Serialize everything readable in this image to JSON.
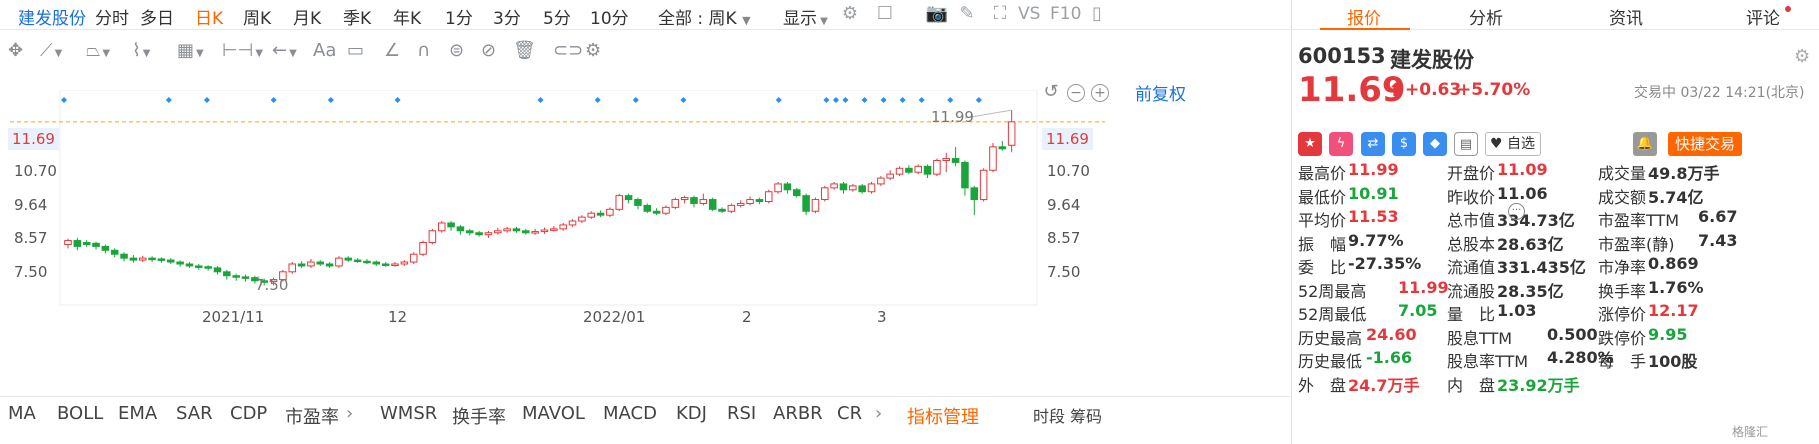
{
  "topbar": {
    "stock_name": "建发股份",
    "periods": [
      "分时",
      "多日",
      "日K",
      "周K",
      "月K",
      "季K",
      "年K",
      "1分",
      "3分",
      "5分",
      "10分"
    ],
    "active_period": "日K",
    "all_select": "全部 : 周K",
    "display_label": "显示",
    "vs_label": "VS",
    "f10_label": "F10"
  },
  "toolbar": {
    "text_tool": "Aa"
  },
  "chart": {
    "fq_label": "前复权",
    "y_ticks": [
      "11.69",
      "10.70",
      "9.64",
      "8.57",
      "7.50"
    ],
    "y_ticks_right": [
      "11.69",
      "10.70",
      "9.64",
      "8.57",
      "7.50"
    ],
    "x_ticks": [
      "2021/11",
      "12",
      "2022/01",
      "2",
      "3"
    ],
    "annot_high": "11.99",
    "annot_low": "7.50",
    "current_line_label_left": "11.69",
    "current_line_label_right": "11.69"
  },
  "chart_data": {
    "type": "candlestick",
    "series_name": "",
    "y_range": [
      7.0,
      12.3
    ],
    "current_price": 11.69,
    "high_marker": 11.99,
    "low_marker": 7.5,
    "candles": [
      [
        8.55,
        8.65,
        8.45,
        8.7,
        "up"
      ],
      [
        8.65,
        8.5,
        8.4,
        8.72,
        "down"
      ],
      [
        8.55,
        8.6,
        8.48,
        8.66,
        "down"
      ],
      [
        8.58,
        8.5,
        8.42,
        8.62,
        "down"
      ],
      [
        8.5,
        8.4,
        8.32,
        8.55,
        "down"
      ],
      [
        8.4,
        8.3,
        8.22,
        8.45,
        "down"
      ],
      [
        8.3,
        8.2,
        8.12,
        8.35,
        "down"
      ],
      [
        8.2,
        8.15,
        8.08,
        8.28,
        "down"
      ],
      [
        8.15,
        8.2,
        8.1,
        8.26,
        "up"
      ],
      [
        8.2,
        8.18,
        8.1,
        8.25,
        "down"
      ],
      [
        8.18,
        8.15,
        8.08,
        8.22,
        "down"
      ],
      [
        8.15,
        8.1,
        8.05,
        8.2,
        "down"
      ],
      [
        8.1,
        8.05,
        7.98,
        8.14,
        "down"
      ],
      [
        8.05,
        8.0,
        7.95,
        8.1,
        "down"
      ],
      [
        8.0,
        7.98,
        7.9,
        8.05,
        "down"
      ],
      [
        7.98,
        7.95,
        7.88,
        8.02,
        "down"
      ],
      [
        7.95,
        7.85,
        7.78,
        8.0,
        "down"
      ],
      [
        7.85,
        7.75,
        7.65,
        7.9,
        "down"
      ],
      [
        7.75,
        7.72,
        7.62,
        7.8,
        "down"
      ],
      [
        7.72,
        7.7,
        7.6,
        7.78,
        "down"
      ],
      [
        7.7,
        7.62,
        7.55,
        7.75,
        "down"
      ],
      [
        7.62,
        7.6,
        7.5,
        7.68,
        "down"
      ],
      [
        7.6,
        7.65,
        7.5,
        7.7,
        "up"
      ],
      [
        7.65,
        7.85,
        7.6,
        7.9,
        "up"
      ],
      [
        7.85,
        8.05,
        7.8,
        8.1,
        "up"
      ],
      [
        8.05,
        8.0,
        7.95,
        8.12,
        "down"
      ],
      [
        8.0,
        8.1,
        7.95,
        8.18,
        "up"
      ],
      [
        8.1,
        8.05,
        8.0,
        8.15,
        "down"
      ],
      [
        8.05,
        8.0,
        7.95,
        8.1,
        "down"
      ],
      [
        8.0,
        8.2,
        7.95,
        8.25,
        "up"
      ],
      [
        8.2,
        8.15,
        8.1,
        8.25,
        "down"
      ],
      [
        8.15,
        8.12,
        8.08,
        8.2,
        "down"
      ],
      [
        8.12,
        8.1,
        8.05,
        8.18,
        "down"
      ],
      [
        8.1,
        8.05,
        8.0,
        8.14,
        "down"
      ],
      [
        8.05,
        8.02,
        7.98,
        8.1,
        "down"
      ],
      [
        8.02,
        8.05,
        7.98,
        8.1,
        "up"
      ],
      [
        8.05,
        8.1,
        8.0,
        8.15,
        "up"
      ],
      [
        8.1,
        8.3,
        8.05,
        8.35,
        "up"
      ],
      [
        8.3,
        8.6,
        8.25,
        8.65,
        "up"
      ],
      [
        8.6,
        8.9,
        8.55,
        8.95,
        "up"
      ],
      [
        8.9,
        9.1,
        8.85,
        9.15,
        "up"
      ],
      [
        9.1,
        9.0,
        8.9,
        9.15,
        "down"
      ],
      [
        9.0,
        8.9,
        8.8,
        9.05,
        "down"
      ],
      [
        8.9,
        8.85,
        8.78,
        8.95,
        "down"
      ],
      [
        8.85,
        8.8,
        8.75,
        8.9,
        "down"
      ],
      [
        8.8,
        8.85,
        8.72,
        8.9,
        "up"
      ],
      [
        8.85,
        8.9,
        8.8,
        8.98,
        "up"
      ],
      [
        8.9,
        8.95,
        8.85,
        9.0,
        "up"
      ],
      [
        8.95,
        8.9,
        8.85,
        9.0,
        "down"
      ],
      [
        8.9,
        8.85,
        8.8,
        8.95,
        "down"
      ],
      [
        8.85,
        8.88,
        8.8,
        8.95,
        "up"
      ],
      [
        8.88,
        8.92,
        8.82,
        8.98,
        "up"
      ],
      [
        8.92,
        8.95,
        8.88,
        9.02,
        "up"
      ],
      [
        8.95,
        9.05,
        8.9,
        9.1,
        "up"
      ],
      [
        9.05,
        9.15,
        9.0,
        9.2,
        "up"
      ],
      [
        9.15,
        9.25,
        9.1,
        9.3,
        "up"
      ],
      [
        9.25,
        9.35,
        9.2,
        9.4,
        "up"
      ],
      [
        9.35,
        9.3,
        9.25,
        9.42,
        "down"
      ],
      [
        9.3,
        9.45,
        9.25,
        9.5,
        "up"
      ],
      [
        9.45,
        9.8,
        9.4,
        9.85,
        "up"
      ],
      [
        9.8,
        9.7,
        9.6,
        9.85,
        "down"
      ],
      [
        9.7,
        9.55,
        9.45,
        9.75,
        "down"
      ],
      [
        9.55,
        9.4,
        9.35,
        9.6,
        "down"
      ],
      [
        9.4,
        9.35,
        9.3,
        9.48,
        "down"
      ],
      [
        9.35,
        9.5,
        9.3,
        9.55,
        "up"
      ],
      [
        9.5,
        9.7,
        9.45,
        9.75,
        "up"
      ],
      [
        9.7,
        9.75,
        9.6,
        9.8,
        "up"
      ],
      [
        9.75,
        9.6,
        9.5,
        9.8,
        "down"
      ],
      [
        9.6,
        9.7,
        9.55,
        9.85,
        "up"
      ],
      [
        9.7,
        9.45,
        9.4,
        9.75,
        "down"
      ],
      [
        9.45,
        9.4,
        9.35,
        9.5,
        "down"
      ],
      [
        9.4,
        9.55,
        9.35,
        9.6,
        "up"
      ],
      [
        9.55,
        9.6,
        9.5,
        9.68,
        "up"
      ],
      [
        9.6,
        9.7,
        9.55,
        9.78,
        "up"
      ],
      [
        9.7,
        9.65,
        9.58,
        9.75,
        "down"
      ],
      [
        9.65,
        9.9,
        9.6,
        9.95,
        "up"
      ],
      [
        9.9,
        10.1,
        9.85,
        10.15,
        "up"
      ],
      [
        10.1,
        9.95,
        9.85,
        10.15,
        "down"
      ],
      [
        9.95,
        9.8,
        9.75,
        10.0,
        "down"
      ],
      [
        9.8,
        9.4,
        9.3,
        9.85,
        "down"
      ],
      [
        9.4,
        9.7,
        9.35,
        9.75,
        "up"
      ],
      [
        9.7,
        10.0,
        9.65,
        10.05,
        "up"
      ],
      [
        10.0,
        10.1,
        9.95,
        10.15,
        "up"
      ],
      [
        10.1,
        9.95,
        9.85,
        10.15,
        "down"
      ],
      [
        9.95,
        10.05,
        9.9,
        10.1,
        "up"
      ],
      [
        10.05,
        9.9,
        9.85,
        10.1,
        "down"
      ],
      [
        9.9,
        10.1,
        9.85,
        10.15,
        "up"
      ],
      [
        10.1,
        10.25,
        10.05,
        10.3,
        "up"
      ],
      [
        10.25,
        10.35,
        10.2,
        10.45,
        "up"
      ],
      [
        10.35,
        10.5,
        10.3,
        10.55,
        "up"
      ],
      [
        10.5,
        10.4,
        10.35,
        10.58,
        "down"
      ],
      [
        10.4,
        10.55,
        10.35,
        10.6,
        "up"
      ],
      [
        10.55,
        10.35,
        10.25,
        10.6,
        "down"
      ],
      [
        10.35,
        10.7,
        10.3,
        10.75,
        "up"
      ],
      [
        10.7,
        10.75,
        10.4,
        10.9,
        "up"
      ],
      [
        10.75,
        10.65,
        10.55,
        11.05,
        "down"
      ],
      [
        10.65,
        10.0,
        9.8,
        10.7,
        "down"
      ],
      [
        10.0,
        9.7,
        9.3,
        10.05,
        "down"
      ],
      [
        9.7,
        10.45,
        9.65,
        10.5,
        "up"
      ],
      [
        10.45,
        11.05,
        10.4,
        11.15,
        "up"
      ],
      [
        11.05,
        11.0,
        10.95,
        11.2,
        "down"
      ],
      [
        11.09,
        11.69,
        10.91,
        11.99,
        "up"
      ]
    ],
    "markers_count": 20
  },
  "indicators": [
    "MA",
    "BOLL",
    "EMA",
    "SAR",
    "CDP",
    "市盈率",
    "WMSR",
    "换手率",
    "MAVOL",
    "MACD",
    "KDJ",
    "RSI",
    "ARBR",
    "CR"
  ],
  "indicator_manage": "指标管理",
  "bottom_right": [
    "时段",
    "筹码"
  ],
  "right": {
    "tabs": [
      "报价",
      "分析",
      "资讯",
      "评论"
    ],
    "active_tab": "报价",
    "code": "600153",
    "name": "建发股份",
    "price": "11.69",
    "change": "+0.63",
    "change_pct": "+5.70%",
    "status": "交易中 03/22 14:21(北京)",
    "watch_label": "自选",
    "trade_label": "快捷交易",
    "stats": [
      {
        "label": "最高价",
        "value": "11.99",
        "cls": "red"
      },
      {
        "label": "开盘价",
        "value": "11.09",
        "cls": "red"
      },
      {
        "label": "成交量",
        "value": "49.8万手",
        "cls": ""
      },
      {
        "label": "最低价",
        "value": "10.91",
        "cls": "green"
      },
      {
        "label": "昨收价",
        "value": "11.06",
        "cls": ""
      },
      {
        "label": "成交额",
        "value": "5.74亿",
        "cls": ""
      },
      {
        "label": "平均价",
        "value": "11.53",
        "cls": "red"
      },
      {
        "label": "总市值",
        "value": "334.73亿",
        "cls": ""
      },
      {
        "label": "市盈率TTM",
        "value": "6.67",
        "cls": ""
      },
      {
        "label": "振　幅",
        "value": "9.77%",
        "cls": ""
      },
      {
        "label": "总股本",
        "value": "28.63亿",
        "cls": ""
      },
      {
        "label": "市盈率(静)",
        "value": "7.43",
        "cls": ""
      },
      {
        "label": "委　比",
        "value": "-27.35%",
        "cls": ""
      },
      {
        "label": "流通值",
        "value": "331.435亿",
        "cls": ""
      },
      {
        "label": "市净率",
        "value": "0.869",
        "cls": ""
      },
      {
        "label": "52周最高",
        "value": "11.99",
        "cls": "red"
      },
      {
        "label": "流通股",
        "value": "28.35亿",
        "cls": ""
      },
      {
        "label": "换手率",
        "value": "1.76%",
        "cls": ""
      },
      {
        "label": "52周最低",
        "value": "7.05",
        "cls": "green"
      },
      {
        "label": "量　比",
        "value": "1.03",
        "cls": ""
      },
      {
        "label": "涨停价",
        "value": "12.17",
        "cls": "red"
      },
      {
        "label": "历史最高",
        "value": "24.60",
        "cls": "red"
      },
      {
        "label": "股息TTM",
        "value": "0.500",
        "cls": ""
      },
      {
        "label": "跌停价",
        "value": "9.95",
        "cls": "green"
      },
      {
        "label": "历史最低",
        "value": "-1.66",
        "cls": "green"
      },
      {
        "label": "股息率TTM",
        "value": "4.280%",
        "cls": ""
      },
      {
        "label": "每　手",
        "value": "100股",
        "cls": ""
      },
      {
        "label": "外　盘",
        "value": "24.7万手",
        "cls": "red"
      },
      {
        "label": "内　盘",
        "value": "23.92万手",
        "cls": "green"
      }
    ],
    "watermark": "格隆汇"
  },
  "colors": {
    "up": "#e4393c",
    "down": "#1aa53a",
    "accent": "#ff6600",
    "link": "#1a6fe0",
    "marker": "#2b8ef0"
  }
}
